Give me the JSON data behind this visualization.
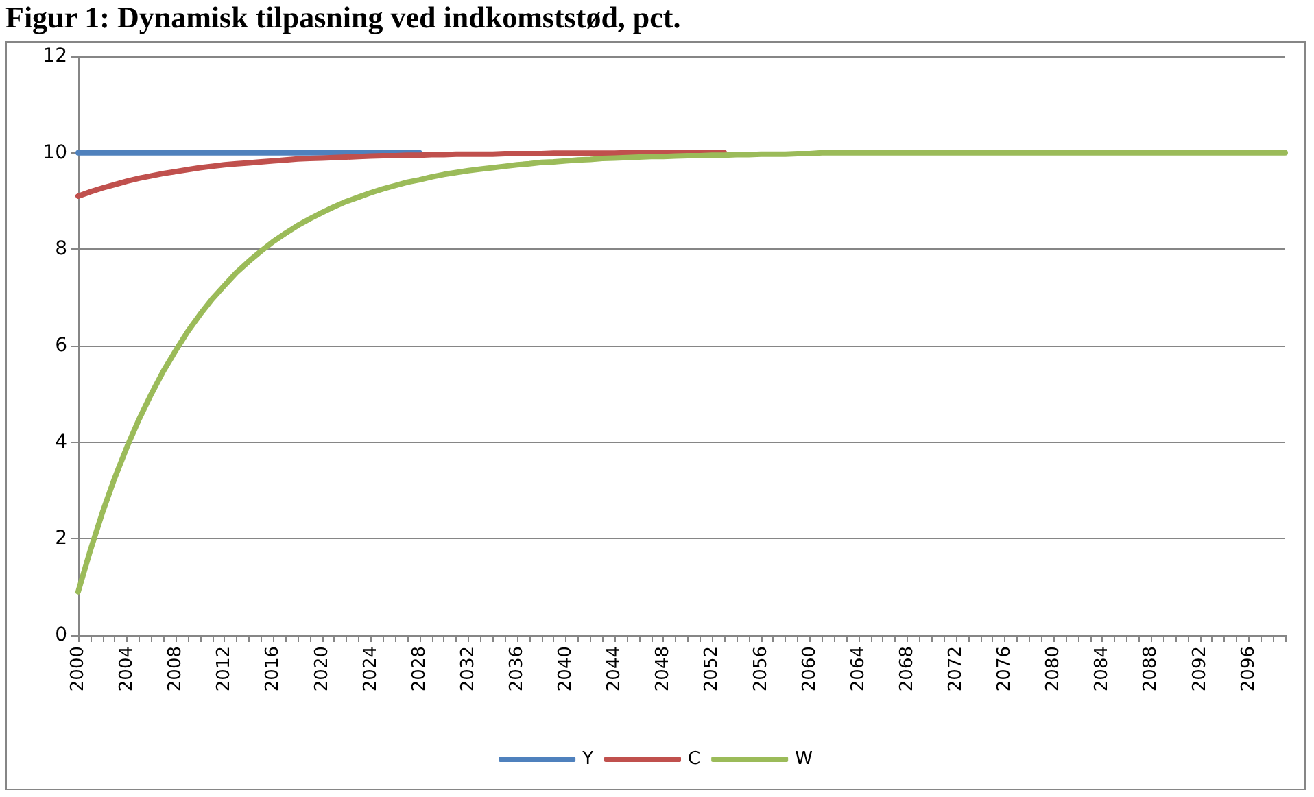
{
  "chart_data": {
    "type": "line",
    "title": "Figur 1: Dynamisk tilpasning ved indkomststød, pct.",
    "categories": [
      "2000",
      null,
      null,
      null,
      "2004",
      null,
      null,
      null,
      "2008",
      null,
      null,
      null,
      "2012",
      null,
      null,
      null,
      "2016",
      null,
      null,
      null,
      "2020",
      null,
      null,
      null,
      "2024",
      null,
      null,
      null,
      "2028",
      null,
      null,
      null,
      "2032",
      null,
      null,
      null,
      "2036",
      null,
      null,
      null,
      "2040",
      null,
      null,
      null,
      "2044",
      null,
      null,
      null,
      "2048",
      null,
      null,
      null,
      "2052",
      null,
      null,
      null,
      "2056",
      null,
      null,
      null,
      "2060",
      null,
      null,
      null,
      "2064",
      null,
      null,
      null,
      "2068",
      null,
      null,
      null,
      "2072",
      null,
      null,
      null,
      "2076",
      null,
      null,
      null,
      "2080",
      null,
      null,
      null,
      "2084",
      null,
      null,
      null,
      "2088",
      null,
      null,
      null,
      "2092",
      null,
      null,
      null,
      "2096",
      null,
      null,
      null
    ],
    "series": [
      {
        "name": "Y",
        "color": "#4f81bd",
        "values": [
          10,
          10,
          10,
          10,
          10,
          10,
          10,
          10,
          10,
          10,
          10,
          10,
          10,
          10,
          10,
          10,
          10,
          10,
          10,
          10,
          10,
          10,
          10,
          10,
          10,
          10,
          10,
          10,
          10,
          null,
          null,
          null,
          null,
          null,
          null,
          null,
          null,
          null,
          null,
          null,
          null,
          null,
          null,
          null,
          null,
          null,
          null,
          null,
          null,
          null,
          null,
          null,
          null,
          null,
          null,
          null,
          null,
          null,
          null,
          null,
          null,
          null,
          null,
          null,
          null,
          null,
          null,
          null,
          null,
          null,
          null,
          null,
          null,
          null,
          null,
          null,
          null,
          null,
          null,
          null,
          null,
          null,
          null,
          null,
          null,
          null,
          null,
          null,
          null,
          null,
          null,
          null,
          null,
          null,
          null,
          null,
          null,
          null,
          null,
          null
        ]
      },
      {
        "name": "C",
        "color": "#c0504d",
        "values": [
          9.1,
          9.19,
          9.27,
          9.34,
          9.41,
          9.47,
          9.52,
          9.57,
          9.61,
          9.65,
          9.69,
          9.72,
          9.75,
          9.77,
          9.79,
          9.81,
          9.83,
          9.85,
          9.87,
          9.88,
          9.89,
          9.9,
          9.91,
          9.92,
          9.93,
          9.94,
          9.94,
          9.95,
          9.95,
          9.96,
          9.96,
          9.97,
          9.97,
          9.97,
          9.97,
          9.98,
          9.98,
          9.98,
          9.98,
          9.99,
          9.99,
          9.99,
          9.99,
          9.99,
          9.99,
          10,
          10,
          10,
          10,
          10,
          10,
          10,
          10,
          10,
          null,
          null,
          null,
          null,
          null,
          null,
          null,
          null,
          null,
          null,
          null,
          null,
          null,
          null,
          null,
          null,
          null,
          null,
          null,
          null,
          null,
          null,
          null,
          null,
          null,
          null,
          null,
          null,
          null,
          null,
          null,
          null,
          null,
          null,
          null,
          null,
          null,
          null,
          null,
          null,
          null,
          null,
          null,
          null,
          null,
          null
        ]
      },
      {
        "name": "W",
        "color": "#9bbb59",
        "values": [
          0.9,
          1.76,
          2.55,
          3.26,
          3.9,
          4.48,
          5.0,
          5.48,
          5.9,
          6.3,
          6.65,
          6.97,
          7.25,
          7.52,
          7.75,
          7.96,
          8.16,
          8.33,
          8.49,
          8.63,
          8.76,
          8.88,
          8.99,
          9.08,
          9.17,
          9.25,
          9.32,
          9.39,
          9.44,
          9.5,
          9.55,
          9.59,
          9.63,
          9.66,
          9.69,
          9.72,
          9.75,
          9.77,
          9.8,
          9.81,
          9.83,
          9.85,
          9.86,
          9.88,
          9.89,
          9.9,
          9.91,
          9.92,
          9.92,
          9.93,
          9.94,
          9.94,
          9.95,
          9.95,
          9.96,
          9.96,
          9.97,
          9.97,
          9.97,
          9.98,
          9.98,
          10,
          10,
          10,
          10,
          10,
          10,
          10,
          10,
          10,
          10,
          10,
          10,
          10,
          10,
          10,
          10,
          10,
          10,
          10,
          10,
          10,
          10,
          10,
          10,
          10,
          10,
          10,
          10,
          10,
          10,
          10,
          10,
          10,
          10,
          10,
          10,
          10,
          10,
          10
        ]
      }
    ],
    "ylim": [
      0,
      12
    ],
    "yticks": [
      0,
      2,
      4,
      6,
      8,
      10,
      12
    ],
    "grid": "y",
    "legend": "bottom",
    "marker": "none",
    "line_style": "solid"
  }
}
